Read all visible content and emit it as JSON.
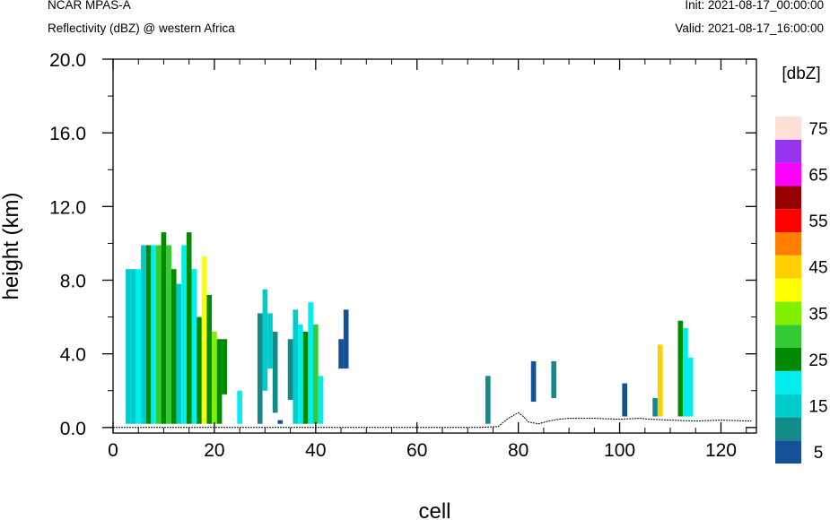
{
  "header": {
    "title_left": "NCAR MPAS-A",
    "subtitle_left": "Reflectivity (dBZ) @ western Africa",
    "init": "Init: 2021-08-17_00:00:00",
    "valid": "Valid: 2021-08-17_16:00:00"
  },
  "chart_data": {
    "type": "heatmap",
    "title": "Reflectivity (dBZ) @ western Africa",
    "xlabel": "cell",
    "ylabel": "height (km)",
    "xlim": [
      0,
      127
    ],
    "ylim": [
      -0.3,
      20.0
    ],
    "xticks": [
      "0",
      "20",
      "40",
      "60",
      "80",
      "100",
      "120"
    ],
    "yticks": [
      "0.0",
      "4.0",
      "8.0",
      "12.0",
      "16.0",
      "20.0"
    ],
    "colorbar": {
      "unit": "[dbZ]",
      "levels": [
        5,
        10,
        15,
        20,
        25,
        30,
        35,
        40,
        45,
        50,
        55,
        60,
        65,
        70,
        75
      ],
      "labels": [
        "5",
        "15",
        "25",
        "35",
        "45",
        "55",
        "65",
        "75"
      ],
      "colors": [
        "#155196",
        "#138b8b",
        "#00cccc",
        "#00eeee",
        "#028a02",
        "#33cc33",
        "#80f000",
        "#ffff00",
        "#ffd000",
        "#ff8000",
        "#ff0000",
        "#990000",
        "#ff00ff",
        "#9633ee",
        "#ffe0d8"
      ]
    },
    "columns": [
      {
        "x": 3,
        "bottom": 0.2,
        "top": 8.6,
        "dbz": 15
      },
      {
        "x": 4,
        "bottom": 0.2,
        "top": 8.6,
        "dbz": 15
      },
      {
        "x": 5,
        "bottom": 0.2,
        "top": 8.6,
        "dbz": 20
      },
      {
        "x": 6,
        "bottom": 0.2,
        "top": 9.9,
        "dbz": 15
      },
      {
        "x": 7,
        "bottom": 0.2,
        "top": 9.9,
        "dbz": 25
      },
      {
        "x": 8,
        "bottom": 0.2,
        "top": 9.9,
        "dbz": 20
      },
      {
        "x": 9,
        "bottom": 0.2,
        "top": 9.9,
        "dbz": 30
      },
      {
        "x": 10,
        "bottom": 0.2,
        "top": 10.6,
        "dbz": 25
      },
      {
        "x": 11,
        "bottom": 0.2,
        "top": 9.9,
        "dbz": 30
      },
      {
        "x": 12,
        "bottom": 0.2,
        "top": 8.6,
        "dbz": 25
      },
      {
        "x": 13,
        "bottom": 0.2,
        "top": 7.8,
        "dbz": 15
      },
      {
        "x": 14,
        "bottom": 0.2,
        "top": 9.9,
        "dbz": 20
      },
      {
        "x": 15,
        "bottom": 0.2,
        "top": 10.6,
        "dbz": 25
      },
      {
        "x": 16,
        "bottom": 0.2,
        "top": 8.6,
        "dbz": 20
      },
      {
        "x": 17,
        "bottom": 0.2,
        "top": 6.0,
        "dbz": 25
      },
      {
        "x": 18,
        "bottom": 0.2,
        "top": 9.3,
        "dbz": 40
      },
      {
        "x": 19,
        "bottom": 0.2,
        "top": 7.2,
        "dbz": 25
      },
      {
        "x": 20,
        "bottom": 0.2,
        "top": 5.2,
        "dbz": 35
      },
      {
        "x": 21,
        "bottom": 0.2,
        "top": 4.8,
        "dbz": 25
      },
      {
        "x": 22,
        "bottom": 1.8,
        "top": 4.8,
        "dbz": 25
      },
      {
        "x": 25,
        "bottom": 0.2,
        "top": 2.0,
        "dbz": 20
      },
      {
        "x": 29,
        "bottom": 0.2,
        "top": 6.2,
        "dbz": 10
      },
      {
        "x": 30,
        "bottom": 2.0,
        "top": 7.5,
        "dbz": 15
      },
      {
        "x": 31,
        "bottom": 3.2,
        "top": 6.2,
        "dbz": 15
      },
      {
        "x": 32,
        "bottom": 0.8,
        "top": 5.2,
        "dbz": 10
      },
      {
        "x": 33,
        "bottom": 0.2,
        "top": 0.4,
        "dbz": 5
      },
      {
        "x": 35,
        "bottom": 1.5,
        "top": 4.8,
        "dbz": 10
      },
      {
        "x": 36,
        "bottom": 0.2,
        "top": 6.4,
        "dbz": 15
      },
      {
        "x": 37,
        "bottom": 0.2,
        "top": 5.6,
        "dbz": 20
      },
      {
        "x": 38,
        "bottom": 0.2,
        "top": 5.2,
        "dbz": 25
      },
      {
        "x": 39,
        "bottom": 0.2,
        "top": 6.8,
        "dbz": 20
      },
      {
        "x": 40,
        "bottom": 0.2,
        "top": 5.6,
        "dbz": 30
      },
      {
        "x": 41,
        "bottom": 0.2,
        "top": 2.8,
        "dbz": 20
      },
      {
        "x": 45,
        "bottom": 3.2,
        "top": 4.8,
        "dbz": 5
      },
      {
        "x": 46,
        "bottom": 3.2,
        "top": 6.4,
        "dbz": 5
      },
      {
        "x": 74,
        "bottom": 0.2,
        "top": 2.8,
        "dbz": 10
      },
      {
        "x": 83,
        "bottom": 1.4,
        "top": 3.6,
        "dbz": 5
      },
      {
        "x": 87,
        "bottom": 1.6,
        "top": 3.6,
        "dbz": 10
      },
      {
        "x": 101,
        "bottom": 0.6,
        "top": 2.4,
        "dbz": 5
      },
      {
        "x": 107,
        "bottom": 0.6,
        "top": 1.6,
        "dbz": 10
      },
      {
        "x": 108,
        "bottom": 0.6,
        "top": 4.5,
        "dbz": 45
      },
      {
        "x": 112,
        "bottom": 0.6,
        "top": 5.8,
        "dbz": 25
      },
      {
        "x": 113,
        "bottom": 0.6,
        "top": 5.4,
        "dbz": 20
      },
      {
        "x": 114,
        "bottom": 0.6,
        "top": 3.8,
        "dbz": 20
      }
    ],
    "terrain": {
      "x": [
        0,
        72,
        76,
        78,
        80,
        81,
        82,
        84,
        86,
        88,
        90,
        95,
        100,
        104,
        106,
        110,
        115,
        120,
        126
      ],
      "height": [
        0.0,
        0.0,
        0.05,
        0.5,
        0.8,
        0.6,
        0.3,
        0.2,
        0.35,
        0.45,
        0.5,
        0.5,
        0.45,
        0.5,
        0.45,
        0.4,
        0.35,
        0.4,
        0.35
      ]
    }
  }
}
